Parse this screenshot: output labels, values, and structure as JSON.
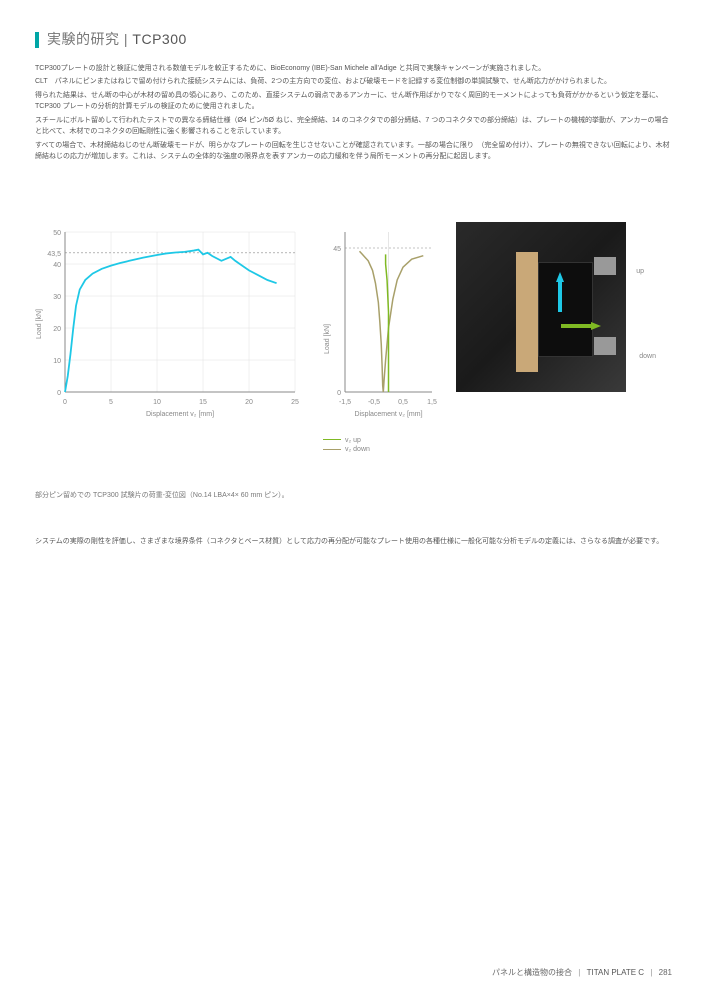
{
  "header": {
    "prefix": "実験的研究",
    "code": "TCP300"
  },
  "paragraphs": [
    "TCP300プレートの設計と検証に使用される数値モデルを較正するために、BioEconomy (IBE)-San Michele all'Adige と共同で実験キャンペーンが実施されました。",
    "CLT　パネルにピンまたはねじで留め付けられた接続システムには、負荷、2つの主方向での変位、および破壊モードを記録する変位制御の単調試験で、せん断応力がかけられました。",
    "得られた結果は、せん断の中心が木材の留め具の領心にあり、このため、直接システムの弱点であるアンカーに、せん断作用ばかりでなく周回的モーメントによっても負荷がかかるという仮定を基に、TCP300 プレートの分析的計算モデルの検証のために使用されました。",
    "スチールにボルト留めして行われたテストでの異なる締結仕様（Ø4 ピン/5Ø ねじ、完全締結、14 のコネクタでの部分締結、7 つのコネクタでの部分締結）は、プレートの機械的挙動が、アンカーの場合と比べて、木材でのコネクタの回転剛性に強く影響されることを示しています。",
    "すべての場合で、木材締結ねじのせん断破壊モードが、明らかなプレートの回転を生じさせないことが確認されています。一部の場合に限り　（完全留め付け）、プレートの無視できない回転により、木材締結ねじの応力が増加します。これは、システムの全体的な強度の限界点を表すアンカーの応力緩和を伴う局所モーメントの再分配に起因します。"
  ],
  "chart1": {
    "ylabel": "Load [kN]",
    "xlabel": "Displacement v₂ [mm]",
    "yticks": [
      0,
      10,
      20,
      30,
      40,
      50
    ],
    "xticks": [
      0,
      5,
      10,
      15,
      20,
      25
    ],
    "refval": "43,5",
    "curve_color": "#1ec8e6",
    "axis_color": "#888",
    "grid_color": "#e0e0e0",
    "points": [
      [
        0,
        0
      ],
      [
        0.3,
        5
      ],
      [
        0.6,
        12
      ],
      [
        0.9,
        20
      ],
      [
        1.2,
        27
      ],
      [
        1.6,
        32
      ],
      [
        2.2,
        35
      ],
      [
        3,
        37
      ],
      [
        4,
        38.5
      ],
      [
        5,
        39.5
      ],
      [
        6,
        40.3
      ],
      [
        7,
        41
      ],
      [
        8.5,
        42
      ],
      [
        10,
        42.8
      ],
      [
        11,
        43.3
      ],
      [
        12,
        43.6
      ],
      [
        13,
        43.8
      ],
      [
        14,
        44.2
      ],
      [
        14.5,
        44.5
      ],
      [
        15,
        43
      ],
      [
        15.5,
        43.5
      ],
      [
        16,
        42.5
      ],
      [
        17,
        41
      ],
      [
        18,
        42.2
      ],
      [
        18.5,
        41
      ],
      [
        19,
        40
      ],
      [
        20,
        38
      ],
      [
        21,
        36.5
      ],
      [
        22,
        35
      ],
      [
        23,
        34
      ]
    ]
  },
  "chart2": {
    "ylabel": "Load [kN]",
    "xlabel": "Displacement v₂ [mm]",
    "yticks": [
      0,
      45
    ],
    "yticklabels": [
      "0",
      "45"
    ],
    "xticks": [
      -1.5,
      -0.5,
      0.5,
      1.5
    ],
    "xticklabels": [
      "-1,5",
      "-0,5",
      "0,5",
      "1,5"
    ],
    "curve_up_color": "#7fb923",
    "curve_down_color": "#a8a06a",
    "axis_color": "#888",
    "points_up": [
      [
        -0.1,
        43
      ],
      [
        -0.1,
        40
      ],
      [
        -0.05,
        35
      ],
      [
        0,
        25
      ],
      [
        0,
        15
      ],
      [
        0,
        5
      ],
      [
        0,
        0
      ]
    ],
    "points_down": [
      [
        -1.0,
        44
      ],
      [
        -0.9,
        43
      ],
      [
        -0.8,
        42
      ],
      [
        -0.7,
        41
      ],
      [
        -0.55,
        38
      ],
      [
        -0.45,
        34
      ],
      [
        -0.35,
        28
      ],
      [
        -0.3,
        22
      ],
      [
        -0.25,
        15
      ],
      [
        -0.22,
        8
      ],
      [
        -0.2,
        2
      ],
      [
        -0.18,
        0
      ],
      [
        -0.15,
        4
      ],
      [
        -0.1,
        10
      ],
      [
        0.0,
        20
      ],
      [
        0.15,
        29
      ],
      [
        0.3,
        35
      ],
      [
        0.5,
        39
      ],
      [
        0.8,
        41.5
      ],
      [
        1.2,
        42.6
      ]
    ]
  },
  "legend": {
    "up": "v₂ up",
    "down": "v₂ down"
  },
  "photo_labels": {
    "up": "up",
    "down": "down"
  },
  "caption": "部分ピン留めでの TCP300 試験片の荷重-変位図（No.14 LBA×4× 60 mm ピン）。",
  "summary": "システムの実際の剛性を評価し、さまざまな境界条件（コネクタとベース材質）として応力の再分配が可能なプレート使用の各種仕様に一般化可能な分析モデルの定義には、さらなる調査が必要です。",
  "footer": {
    "left": "パネルと構造物の接合",
    "product": "TITAN PLATE C",
    "page": "281"
  }
}
